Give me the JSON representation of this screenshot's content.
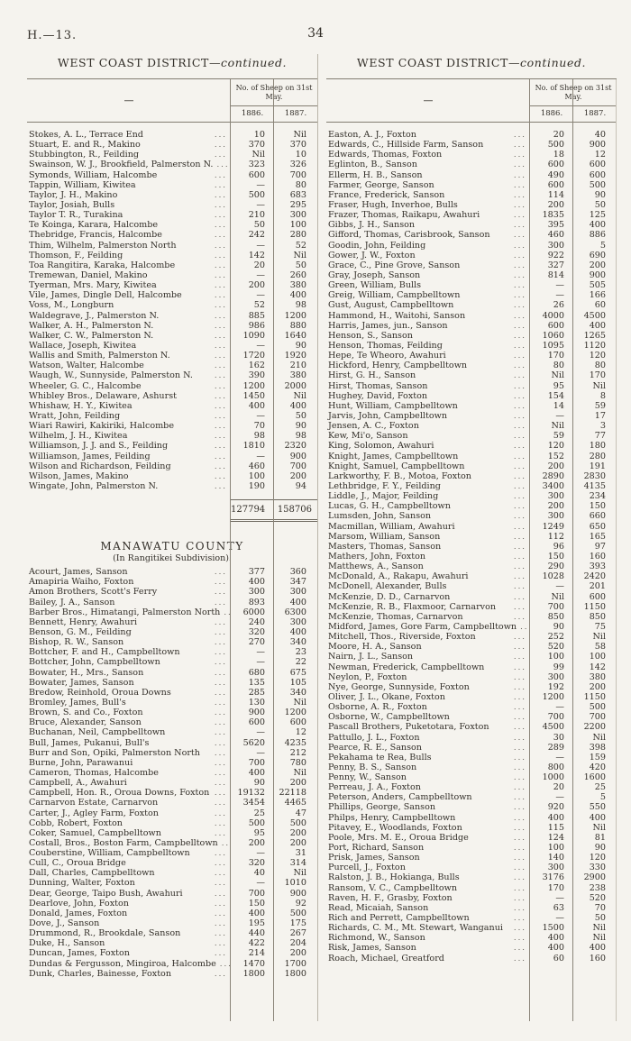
{
  "page": {
    "doc_ref": "H.—13.",
    "page_number": "34"
  },
  "table_header": {
    "dash": "—",
    "sheep_label": "No. of Sheep on 31st May.",
    "col_1886": "1886.",
    "col_1887": "1887."
  },
  "left_table": {
    "title": {
      "main": "WEST COAST DISTRICT",
      "continued": "—continued."
    },
    "rows1": [
      [
        "Stokes, A. L., Terrace End",
        "10",
        "Nil"
      ],
      [
        "Stuart, E. and R., Makino",
        "370",
        "370"
      ],
      [
        "Stubbington, R., Feilding",
        "Nil",
        "10"
      ],
      [
        "Swainson, W. J., Brookfield, Palmerston N.",
        "323",
        "326"
      ],
      [
        "Symonds, William, Halcombe",
        "600",
        "700"
      ],
      [
        "Tappin, William, Kiwitea",
        "—",
        "80"
      ],
      [
        "Taylor, J. H., Makino",
        "500",
        "683"
      ],
      [
        "Taylor, Josiah, Bulls",
        "—",
        "295"
      ],
      [
        "Taylor T. R., Turakina",
        "210",
        "300"
      ],
      [
        "Te Koinga, Karara, Halcombe",
        "50",
        "100"
      ],
      [
        "Thebridge, Francis, Halcombe",
        "242",
        "280"
      ],
      [
        "Thim, Wilhelm, Palmerston North",
        "—",
        "52"
      ],
      [
        "Thomson, F., Feilding",
        "142",
        "Nil"
      ],
      [
        "Toa Rangitira, Karaka, Halcombe",
        "20",
        "50"
      ],
      [
        "Tremewan, Daniel, Makino",
        "—",
        "260"
      ],
      [
        "Tyerman, Mrs. Mary, Kiwitea",
        "200",
        "380"
      ],
      [
        "Vile, James, Dingle Dell, Halcombe",
        "—",
        "400"
      ],
      [
        "Voss, M., Longburn",
        "52",
        "98"
      ],
      [
        "Waldegrave, J., Palmerston N.",
        "885",
        "1200"
      ],
      [
        "Walker, A. H., Palmerston N.",
        "986",
        "880"
      ],
      [
        "Walker, C. W., Palmerston N.",
        "1090",
        "1640"
      ],
      [
        "Wallace, Joseph, Kiwitea",
        "—",
        "90"
      ],
      [
        "Wallis and Smith, Palmerston N.",
        "1720",
        "1920"
      ],
      [
        "Watson, Walter, Halcombe",
        "162",
        "210"
      ],
      [
        "Waugh, W., Sunnyside, Palmerston N.",
        "390",
        "380"
      ],
      [
        "Wheeler, G. C., Halcombe",
        "1200",
        "2000"
      ],
      [
        "Whibley Bros., Delaware, Ashurst",
        "1450",
        "Nil"
      ],
      [
        "Whishaw, H. Y., Kiwitea",
        "400",
        "400"
      ],
      [
        "Wratt, John, Feilding",
        "—",
        "50"
      ],
      [
        "Wiari Rawiri, Kakiriki, Halcombe",
        "70",
        "90"
      ],
      [
        "Wilhelm, J. H., Kiwitea",
        "98",
        "98"
      ],
      [
        "Williamson, J. J. and S., Feilding",
        "1810",
        "2320"
      ],
      [
        "Williamson, James, Feilding",
        "—",
        "900"
      ],
      [
        "Wilson and Richardson, Feilding",
        "460",
        "700"
      ],
      [
        "Wilson, James, Makino",
        "100",
        "200"
      ],
      [
        "Wingate, John, Palmerston N.",
        "190",
        "94"
      ]
    ],
    "total": [
      "127794",
      "158706"
    ],
    "section2": {
      "heading_line1": "MANAWATU COUNTY",
      "heading_line2": "(In Rangitikei Subdivision).",
      "rows": [
        [
          "Acourt, James, Sanson",
          "377",
          "360"
        ],
        [
          "Amapiria Waiho, Foxton",
          "400",
          "347"
        ],
        [
          "Amon Brothers, Scott's Ferry",
          "300",
          "300"
        ],
        [
          "Bailey, J. A., Sanson",
          "893",
          "400"
        ],
        [
          "Barber Bros., Himatangi, Palmerston North",
          "6000",
          "6300"
        ],
        [
          "Bennett, Henry, Awahuri",
          "240",
          "300"
        ],
        [
          "Benson, G. M., Feilding",
          "320",
          "400"
        ],
        [
          "Bishop, R. W., Sanson",
          "270",
          "340"
        ],
        [
          "Bottcher, F. and H., Campbelltown",
          "—",
          "23"
        ],
        [
          "Bottcher, John, Campbelltown",
          "—",
          "22"
        ],
        [
          "Bowater, H., Mrs., Sanson",
          "680",
          "675"
        ],
        [
          "Bowater, James, Sanson",
          "135",
          "105"
        ],
        [
          "Bredow, Reinhold, Oroua Downs",
          "285",
          "340"
        ],
        [
          "Bromley, James, Bull's",
          "130",
          "Nil"
        ],
        [
          "Brown, S. and Co., Foxton",
          "900",
          "1200"
        ],
        [
          "Bruce, Alexander, Sanson",
          "600",
          "600"
        ],
        [
          "Buchanan, Neil, Campbelltown",
          "—",
          "12"
        ],
        [
          "Bull, James, Pukanui, Bull's",
          "5620",
          "4235"
        ],
        [
          "Burr and Son, Opiki, Palmerston North",
          "—",
          "212"
        ],
        [
          "Burne, John, Parawanui",
          "700",
          "780"
        ],
        [
          "Cameron, Thomas, Halcombe",
          "400",
          "Nil"
        ],
        [
          "Campbell, A., Awahuri",
          "90",
          "200"
        ],
        [
          "Campbell, Hon. R., Oroua Downs, Foxton",
          "19132",
          "22118"
        ],
        [
          "Carnarvon Estate, Carnarvon",
          "3454",
          "4465"
        ],
        [
          "Carter, J., Agley Farm, Foxton",
          "25",
          "47"
        ],
        [
          "Cobb, Robert, Foxton",
          "500",
          "500"
        ],
        [
          "Coker, Samuel, Campbelltown",
          "95",
          "200"
        ],
        [
          "Costall, Bros., Boston Farm, Campbelltown",
          "200",
          "200"
        ],
        [
          "Couberstine, William, Campbelltown",
          "—",
          "31"
        ],
        [
          "Cull, C., Oroua Bridge",
          "320",
          "314"
        ],
        [
          "Dall, Charles, Campbelltown",
          "40",
          "Nil"
        ],
        [
          "Dunning, Walter, Foxton",
          "—",
          "1010"
        ],
        [
          "Dear, George, Taipo Bush, Awahuri",
          "700",
          "900"
        ],
        [
          "Dearlove, John, Foxton",
          "150",
          "92"
        ],
        [
          "Donald, James, Foxton",
          "400",
          "500"
        ],
        [
          "Dove, J., Sanson",
          "195",
          "175"
        ],
        [
          "Drummond, R., Brookdale, Sanson",
          "440",
          "267"
        ],
        [
          "Duke, H., Sanson",
          "422",
          "204"
        ],
        [
          "Duncan, James, Foxton",
          "214",
          "200"
        ],
        [
          "Dundas & Fergusson, Mingiroa, Halcombe",
          "1470",
          "1700"
        ],
        [
          "Dunk, Charles, Bainesse, Foxton",
          "1800",
          "1800"
        ]
      ]
    }
  },
  "right_table": {
    "title": {
      "main": "WEST COAST DISTRICT",
      "continued": "—continued."
    },
    "rows": [
      [
        "Easton, A. J., Foxton",
        "20",
        "40"
      ],
      [
        "Edwards, C., Hillside Farm, Sanson",
        "500",
        "900"
      ],
      [
        "Edwards, Thomas, Foxton",
        "18",
        "12"
      ],
      [
        "Eglinton, B., Sanson",
        "600",
        "600"
      ],
      [
        "Ellerm, H. B., Sanson",
        "490",
        "600"
      ],
      [
        "Farmer, George, Sanson",
        "600",
        "500"
      ],
      [
        "France, Frederick, Sanson",
        "114",
        "90"
      ],
      [
        "Fraser, Hugh, Inverhoe, Bulls",
        "200",
        "50"
      ],
      [
        "Frazer, Thomas, Raikapu, Awahuri",
        "1835",
        "125"
      ],
      [
        "Gibbs, J. H., Sanson",
        "395",
        "400"
      ],
      [
        "Gifford, Thomas, Carisbrook, Sanson",
        "460",
        "886"
      ],
      [
        "Goodin, John, Feilding",
        "300",
        "5"
      ],
      [
        "Gower, J. W., Foxton",
        "922",
        "690"
      ],
      [
        "Grace, C., Pine Grove, Sanson",
        "327",
        "200"
      ],
      [
        "Gray, Joseph, Sanson",
        "814",
        "900"
      ],
      [
        "Green, William, Bulls",
        "—",
        "505"
      ],
      [
        "Greig, William, Campbelltown",
        "—",
        "166"
      ],
      [
        "Gust, August, Campbelltown",
        "26",
        "60"
      ],
      [
        "Hammond, H., Waitohi, Sanson",
        "4000",
        "4500"
      ],
      [
        "Harris, James, jun., Sanson",
        "600",
        "400"
      ],
      [
        "Henson, S., Sanson",
        "1060",
        "1265"
      ],
      [
        "Henson, Thomas, Feilding",
        "1095",
        "1120"
      ],
      [
        "Hepe, Te Wheoro, Awahuri",
        "170",
        "120"
      ],
      [
        "Hickford, Henry, Campbelltown",
        "80",
        "80"
      ],
      [
        "Hirst, G. H., Sanson",
        "Nil",
        "170"
      ],
      [
        "Hirst, Thomas, Sanson",
        "95",
        "Nil"
      ],
      [
        "Hughey, David, Foxton",
        "154",
        "8"
      ],
      [
        "Hunt, William, Campbelltown",
        "14",
        "59"
      ],
      [
        "Jarvis, John, Campbelltown",
        "—",
        "17"
      ],
      [
        "Jensen, A. C., Foxton",
        "Nil",
        "3"
      ],
      [
        "Kew, Mi'o, Sanson",
        "59",
        "77"
      ],
      [
        "King, Solomon, Awahuri",
        "120",
        "180"
      ],
      [
        "Knight, James, Campbelltown",
        "152",
        "280"
      ],
      [
        "Knight, Samuel, Campbelltown",
        "200",
        "191"
      ],
      [
        "Larkworthy, F. B., Motoa, Foxton",
        "2890",
        "2830"
      ],
      [
        "Lethbridge, F. Y., Feilding",
        "3400",
        "4135"
      ],
      [
        "Liddle, J., Major, Feilding",
        "300",
        "234"
      ],
      [
        "Lucas, G. H., Campbelltown",
        "200",
        "150"
      ],
      [
        "Lumsden, John, Sanson",
        "300",
        "660"
      ],
      [
        "Macmillan, William, Awahuri",
        "1249",
        "650"
      ],
      [
        "Marsom, William, Sanson",
        "112",
        "165"
      ],
      [
        "Masters, Thomas, Sanson",
        "96",
        "97"
      ],
      [
        "Mathers, John, Foxton",
        "150",
        "160"
      ],
      [
        "Matthews, A., Sanson",
        "290",
        "393"
      ],
      [
        "McDonald, A., Rakapu, Awahuri",
        "1028",
        "2420"
      ],
      [
        "McDonell, Alexander, Bulls",
        "—",
        "201"
      ],
      [
        "McKenzie, D. D., Carnarvon",
        "Nil",
        "600"
      ],
      [
        "McKenzie, R. B., Flaxmoor, Carnarvon",
        "700",
        "1150"
      ],
      [
        "McKenzie, Thomas, Carnarvon",
        "850",
        "850"
      ],
      [
        "Midford, James, Gore Farm, Campbelltown",
        "90",
        "75"
      ],
      [
        "Mitchell, Thos., Riverside, Foxton",
        "252",
        "Nil"
      ],
      [
        "Moore, H. A., Sanson",
        "520",
        "58"
      ],
      [
        "Nairn, J. L., Sanson",
        "100",
        "100"
      ],
      [
        "Newman, Frederick, Campbelltown",
        "99",
        "142"
      ],
      [
        "Neylon, P., Foxton",
        "300",
        "380"
      ],
      [
        "Nye, George, Sunnyside, Foxton",
        "192",
        "200"
      ],
      [
        "Oliver, J. L., Okane, Foxton",
        "1200",
        "1150"
      ],
      [
        "Osborne, A. R., Foxton",
        "—",
        "500"
      ],
      [
        "Osborne, W., Campbelltown",
        "700",
        "700"
      ],
      [
        "Pascall Brothers, Puketotara, Foxton",
        "4500",
        "2200"
      ],
      [
        "Pattullo, J. L., Foxton",
        "30",
        "Nil"
      ],
      [
        "Pearce, R. E., Sanson",
        "289",
        "398"
      ],
      [
        "Pekahama te Rea, Bulls",
        "—",
        "159"
      ],
      [
        "Penny, B. S., Sanson",
        "800",
        "420"
      ],
      [
        "Penny, W., Sanson",
        "1000",
        "1600"
      ],
      [
        "Perreau, J. A., Foxton",
        "20",
        "25"
      ],
      [
        "Peterson, Anders, Campbelltown",
        "—",
        "5"
      ],
      [
        "Phillips, George, Sanson",
        "920",
        "550"
      ],
      [
        "Philps, Henry, Campbelltown",
        "400",
        "400"
      ],
      [
        "Pitavey, E., Woodlands, Foxton",
        "115",
        "Nil"
      ],
      [
        "Poole, Mrs. M. E., Oroua Bridge",
        "124",
        "81"
      ],
      [
        "Port, Richard, Sanson",
        "100",
        "90"
      ],
      [
        "Prisk, James, Sanson",
        "140",
        "120"
      ],
      [
        "Purcell, J., Foxton",
        "300",
        "330"
      ],
      [
        "Ralston, J. B., Hokianga, Bulls",
        "3176",
        "2900"
      ],
      [
        "Ransom, V. C., Campbelltown",
        "170",
        "238"
      ],
      [
        "Raven, H. F., Grasby, Foxton",
        "—",
        "520"
      ],
      [
        "Read, Micaiah, Sanson",
        "63",
        "70"
      ],
      [
        "Rich and Perrett, Campbelltown",
        "—",
        "50"
      ],
      [
        "Richards, C. M., Mt. Stewart, Wanganui",
        "1500",
        "Nil"
      ],
      [
        "Richmond, W., Sanson",
        "400",
        "Nil"
      ],
      [
        "Risk, James, Sanson",
        "400",
        "400"
      ],
      [
        "Roach, Michael, Greatford",
        "60",
        "160"
      ]
    ]
  }
}
